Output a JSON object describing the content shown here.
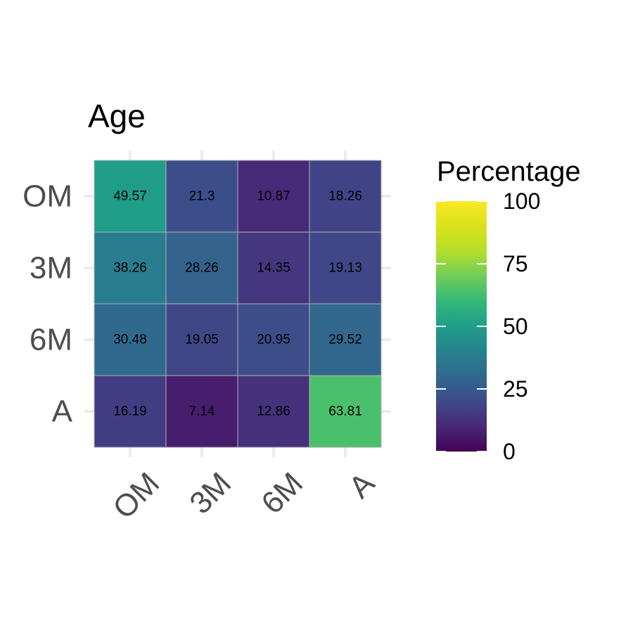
{
  "chart_data": {
    "type": "heatmap",
    "title": "Age",
    "xlabel": "",
    "ylabel": "",
    "x_categories": [
      "OM",
      "3M",
      "6M",
      "A"
    ],
    "y_categories": [
      "OM",
      "3M",
      "6M",
      "A"
    ],
    "values": [
      [
        49.57,
        21.3,
        10.87,
        18.26
      ],
      [
        38.26,
        28.26,
        14.35,
        19.13
      ],
      [
        30.48,
        19.05,
        20.95,
        29.52
      ],
      [
        16.19,
        7.14,
        12.86,
        63.81
      ]
    ],
    "labels": [
      [
        "49.57",
        "21.3",
        "10.87",
        "18.26"
      ],
      [
        "38.26",
        "28.26",
        "14.35",
        "19.13"
      ],
      [
        "30.48",
        "19.05",
        "20.95",
        "29.52"
      ],
      [
        "16.19",
        "7.14",
        "12.86",
        "63.81"
      ]
    ],
    "colorscale": "viridis",
    "legend": {
      "title": "Percentage",
      "limits": [
        0,
        100
      ],
      "breaks": [
        0,
        25,
        50,
        75,
        100
      ],
      "break_labels": [
        "0",
        "25",
        "50",
        "75",
        "100"
      ],
      "position": "right"
    },
    "x_tick_rotation_deg": 45,
    "grid": true
  }
}
